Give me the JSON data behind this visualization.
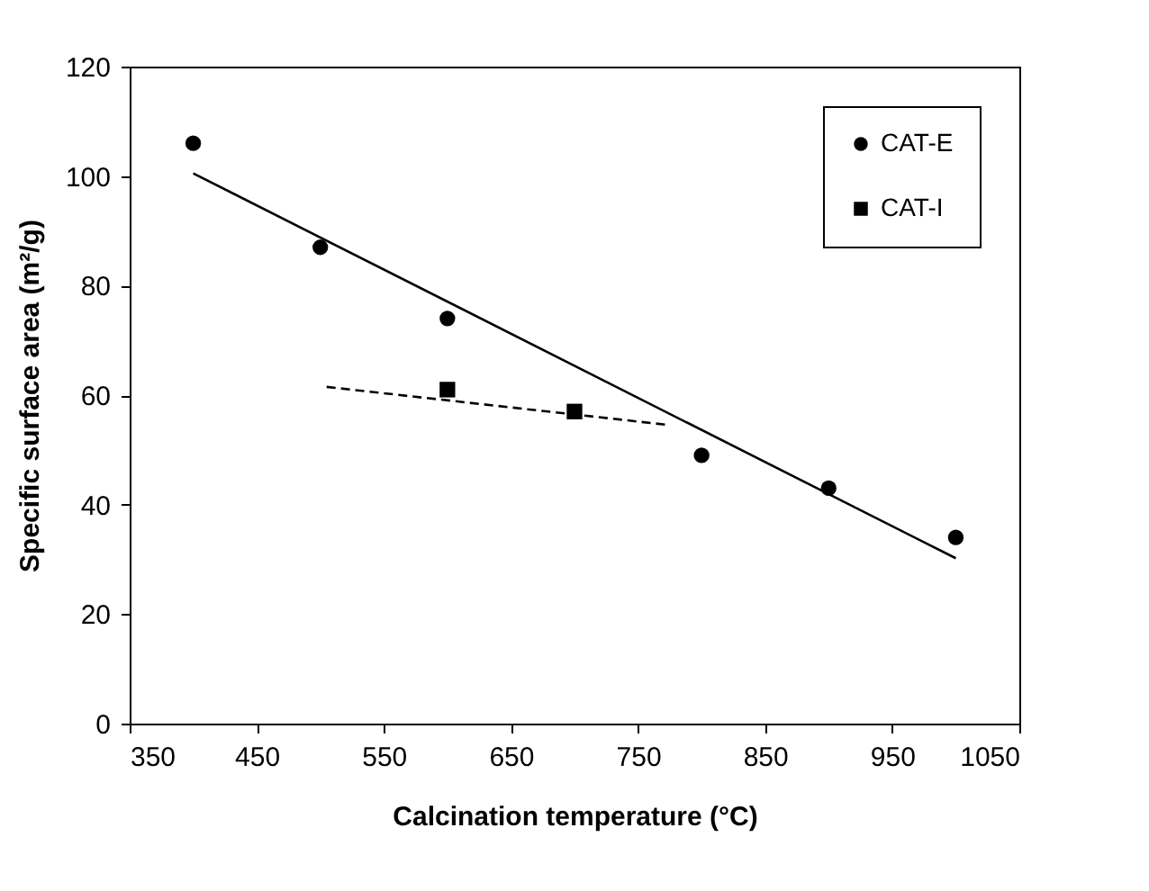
{
  "chart_data": {
    "type": "scatter",
    "xlabel": "Calcination temperature (°C)",
    "ylabel": "Specific surface area (m²/g)",
    "xlim": [
      350,
      1050
    ],
    "xticks": [
      350,
      450,
      550,
      650,
      750,
      850,
      950,
      1050
    ],
    "ylim": [
      0,
      120
    ],
    "yticks": [
      0,
      20,
      40,
      60,
      80,
      100,
      120
    ],
    "grid": false,
    "legend": "top right",
    "series": [
      {
        "name": "CAT-E",
        "marker": "circle",
        "color": "#000000",
        "x": [
          400,
          500,
          600,
          800,
          900,
          1000
        ],
        "values": [
          106,
          87,
          74,
          49,
          43,
          34
        ]
      },
      {
        "name": "CAT-I",
        "marker": "square",
        "color": "#000000",
        "x": [
          600,
          700
        ],
        "values": [
          61,
          57
        ]
      },
      {
        "type": "line",
        "marker": "none",
        "line_style": "solid",
        "color": "#000000",
        "x": [
          400,
          1000
        ],
        "values": [
          100.5,
          30.2
        ]
      },
      {
        "type": "line",
        "marker": "none",
        "line_style": "dashed",
        "color": "#000000",
        "x": [
          505,
          772
        ],
        "values": [
          61.5,
          54.6
        ]
      }
    ]
  }
}
